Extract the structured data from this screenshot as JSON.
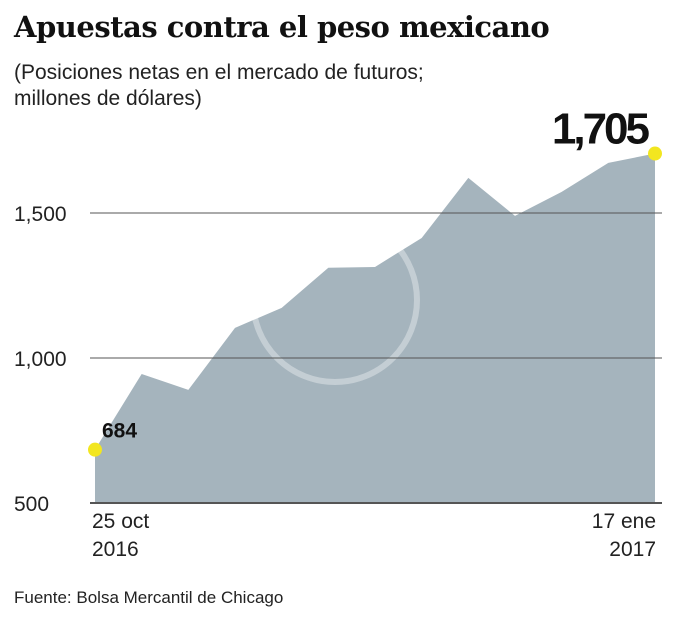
{
  "chart_data": {
    "type": "area",
    "title": "Apuestas contra el peso mexicano",
    "subtitle_line1": "(Posiciones netas en el mercado de futuros;",
    "subtitle_line2": "millones de dólares)",
    "source": "Fuente: Bolsa Mercantil de Chicago",
    "x_start_label": [
      "25 oct",
      "2016"
    ],
    "x_end_label": [
      "17 ene",
      "2017"
    ],
    "values": [
      684,
      945,
      890,
      1104,
      1173,
      1311,
      1314,
      1414,
      1621,
      1490,
      1573,
      1673,
      1705
    ],
    "ylim": [
      500,
      1850
    ],
    "yticks": [
      500,
      1000,
      1500
    ],
    "ytick_labels": [
      "500",
      "1,000",
      "1,500"
    ],
    "grid": true,
    "annotations": [
      {
        "index": 0,
        "label": "684"
      },
      {
        "index": 12,
        "label": "1,705"
      }
    ],
    "colors": {
      "area": "#a5b4bd",
      "marker": "#f2e620",
      "grid": "#555555"
    }
  }
}
